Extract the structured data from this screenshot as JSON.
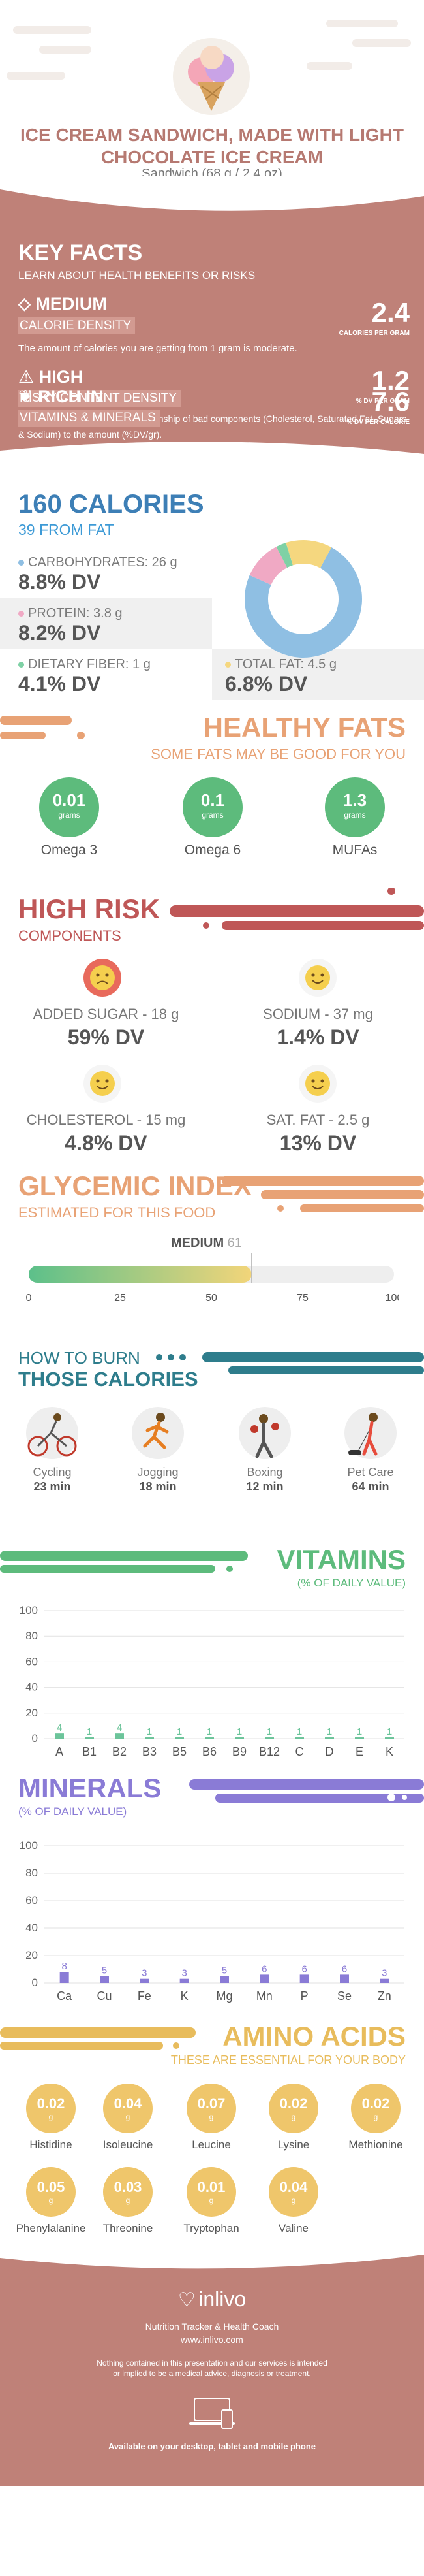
{
  "header": {
    "title": "ICE CREAM SANDWICH, MADE WITH LIGHT CHOCOLATE ICE CREAM",
    "serving": "Sandwich (68 g / 2.4 oz)"
  },
  "key_facts": {
    "title": "KEY FACTS",
    "subtitle": "LEARN ABOUT HEALTH BENEFITS OR RISKS",
    "items": [
      {
        "badge": "MEDIUM",
        "label": "CALORIE DENSITY",
        "description": "The amount of calories you are getting from 1 gram is moderate.",
        "value": "2.4",
        "unit": "CALORIES PER GRAM"
      },
      {
        "badge": "HIGH",
        "label": "RISKY CONTENT DENSITY",
        "description": "Risky Content density is the relationship of bad components (Cholesterol, Saturated Fat, Sugars & Sodium) to the amount (%DV/gr).",
        "value": "1.2",
        "unit": "% DV PER GRAM"
      },
      {
        "badge": "RICH IN",
        "label": "VITAMINS & MINERALS",
        "description": "",
        "value": "7.6",
        "unit": "% DV PER CALORIE"
      }
    ]
  },
  "calories": {
    "title": "160 CALORIES",
    "from_fat": "39 FROM FAT",
    "macros": [
      {
        "label": "CARBOHYDRATES: 26 g",
        "dv": "8.8% DV",
        "color": "#8fbfe3"
      },
      {
        "label": "PROTEIN: 3.8 g",
        "dv": "8.2% DV",
        "color": "#f0a9c4"
      },
      {
        "label": "DIETARY FIBER: 1 g",
        "dv": "4.1% DV",
        "color": "#7fd1a5"
      },
      {
        "label": "TOTAL FAT: 4.5 g",
        "dv": "6.8% DV",
        "color": "#f5d77f"
      }
    ],
    "chart_data": {
      "type": "pie",
      "categories": [
        "Carbohydrates",
        "Protein",
        "Dietary fiber",
        "Total fat"
      ],
      "values": [
        26,
        3.8,
        1,
        4.5
      ],
      "colors": [
        "#8fbfe3",
        "#f0a9c4",
        "#7fd1a5",
        "#f5d77f"
      ]
    }
  },
  "healthy_fats": {
    "title": "HEALTHY FATS",
    "subtitle": "SOME FATS MAY BE GOOD FOR YOU",
    "items": [
      {
        "value": "0.01",
        "unit": "grams",
        "name": "Omega 3"
      },
      {
        "value": "0.1",
        "unit": "grams",
        "name": "Omega 6"
      },
      {
        "value": "1.3",
        "unit": "grams",
        "name": "MUFAs"
      }
    ]
  },
  "high_risk": {
    "title": "HIGH RISK",
    "subtitle": "COMPONENTS",
    "items": [
      {
        "label": "ADDED SUGAR - 18 g",
        "dv": "59% DV",
        "face": "sad"
      },
      {
        "label": "SODIUM - 37 mg",
        "dv": "1.4% DV",
        "face": "happy"
      },
      {
        "label": "CHOLESTEROL - 15 mg",
        "dv": "4.8% DV",
        "face": "happy"
      },
      {
        "label": "SAT. FAT - 2.5 g",
        "dv": "13% DV",
        "face": "happy"
      }
    ]
  },
  "glycemic": {
    "title": "GLYCEMIC INDEX",
    "subtitle": "ESTIMATED FOR THIS FOOD",
    "level": "MEDIUM",
    "value": 61,
    "ticks": [
      "0",
      "25",
      "50",
      "75",
      "100"
    ]
  },
  "burn": {
    "title1": "HOW TO BURN",
    "title2": "THOSE CALORIES",
    "items": [
      {
        "name": "Cycling",
        "time": "23 min"
      },
      {
        "name": "Jogging",
        "time": "18 min"
      },
      {
        "name": "Boxing",
        "time": "12 min"
      },
      {
        "name": "Pet Care",
        "time": "64 min"
      }
    ]
  },
  "vitamins": {
    "title": "VITAMINS",
    "subtitle": "(% OF DAILY VALUE)",
    "chart_data": {
      "type": "bar",
      "categories": [
        "A",
        "B1",
        "B2",
        "B3",
        "B5",
        "B6",
        "B9",
        "B12",
        "C",
        "D",
        "E",
        "K"
      ],
      "values": [
        4,
        1,
        4,
        1,
        1,
        1,
        1,
        1,
        1,
        1,
        1,
        1
      ],
      "data_labels": [
        "4",
        "1",
        "4",
        "1",
        "1",
        "1",
        "1",
        "1",
        "1",
        "1",
        "1",
        "1"
      ],
      "yticks": [
        "0",
        "20",
        "40",
        "60",
        "80",
        "100"
      ],
      "ylim": [
        0,
        100
      ],
      "color": "#6cc49a"
    }
  },
  "minerals": {
    "title": "MINERALS",
    "subtitle": "(% OF DAILY VALUE)",
    "chart_data": {
      "type": "bar",
      "categories": [
        "Ca",
        "Cu",
        "Fe",
        "K",
        "Mg",
        "Mn",
        "P",
        "Se",
        "Zn"
      ],
      "values": [
        8,
        5,
        3,
        3,
        5,
        6,
        6,
        6,
        3
      ],
      "data_labels": [
        "8",
        "5",
        "3",
        "3",
        "5",
        "6",
        "6",
        "6",
        "3"
      ],
      "yticks": [
        "0",
        "20",
        "40",
        "60",
        "80",
        "100"
      ],
      "ylim": [
        0,
        100
      ],
      "color": "#8a7bd6"
    }
  },
  "amino": {
    "title": "AMINO ACIDS",
    "subtitle": "THESE ARE ESSENTIAL FOR YOUR BODY",
    "items": [
      {
        "value": "0.02",
        "unit": "g",
        "name": "Histidine"
      },
      {
        "value": "0.04",
        "unit": "g",
        "name": "Isoleucine"
      },
      {
        "value": "0.07",
        "unit": "g",
        "name": "Leucine"
      },
      {
        "value": "0.02",
        "unit": "g",
        "name": "Lysine"
      },
      {
        "value": "0.02",
        "unit": "g",
        "name": "Methionine"
      },
      {
        "value": "0.05",
        "unit": "g",
        "name": "Phenylalanine"
      },
      {
        "value": "0.03",
        "unit": "g",
        "name": "Threonine"
      },
      {
        "value": "0.01",
        "unit": "g",
        "name": "Tryptophan"
      },
      {
        "value": "0.04",
        "unit": "g",
        "name": "Valine"
      }
    ]
  },
  "footer": {
    "brand": "inlivo",
    "tagline": "Nutrition Tracker & Health Coach",
    "url": "www.inlivo.com",
    "disclaimer": "Nothing contained in this presentation and our services is intended or implied to be a medical advice, diagnosis or treatment.",
    "available": "Available on your desktop, tablet and mobile phone"
  },
  "colors": {
    "rose": "#bf8178",
    "blue": "#3d7fb6",
    "orange": "#e8a275",
    "green": "#5dbb7c",
    "red": "#bf5757",
    "purple": "#8a7bd6",
    "gold": "#e8bc5c",
    "teal": "#2e7d8c"
  }
}
